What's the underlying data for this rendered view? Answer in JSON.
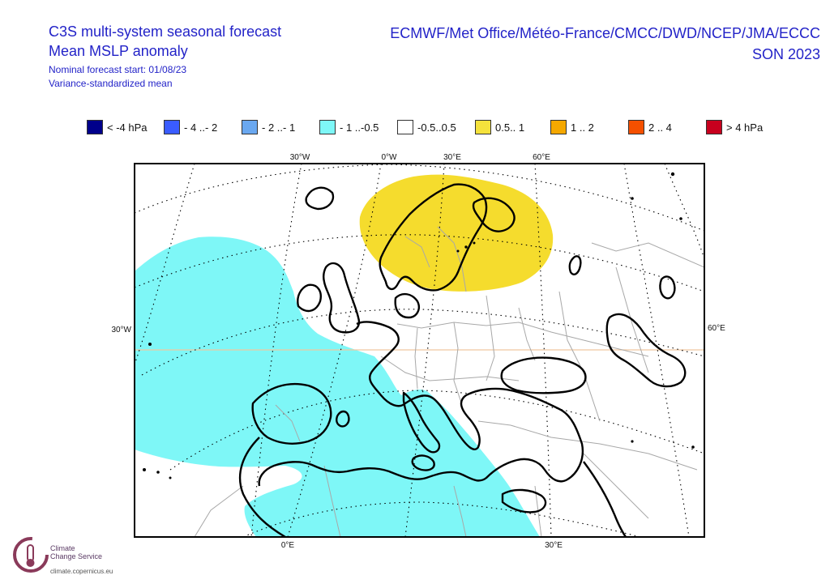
{
  "header": {
    "title": "C3S multi-system seasonal forecast",
    "subtitle": "Mean MSLP anomaly",
    "forecast_start": "Nominal forecast start: 01/08/23",
    "method": "Variance-standardized mean",
    "centres": "ECMWF/Met Office/Météo-France/CMCC/DWD/NCEP/JMA/ECCC",
    "season": "SON 2023"
  },
  "legend": [
    {
      "label": "< -4 hPa",
      "color": "#00008b"
    },
    {
      "label": "- 4 ..- 2",
      "color": "#3a5cff"
    },
    {
      "label": "- 2 ..- 1",
      "color": "#6aa8f0"
    },
    {
      "label": "- 1 ..-0.5",
      "color": "#7ef7f7"
    },
    {
      "label": "-0.5..0.5",
      "color": "#ffffff"
    },
    {
      "label": "0.5.. 1",
      "color": "#f5e23c"
    },
    {
      "label": "1 .. 2",
      "color": "#f5a800"
    },
    {
      "label": "2 .. 4",
      "color": "#f55000"
    },
    {
      "label": ">  4 hPa",
      "color": "#c8001e"
    }
  ],
  "map": {
    "lon_labels_top": [
      "30°W",
      "0°W",
      "30°E",
      "60°E"
    ],
    "lon_labels_bottom": [
      "0°E",
      "30°E"
    ],
    "lat_label_left": "30°W",
    "lat_label_right": "60°E",
    "colors": {
      "negative_anomaly": "#7ef7f7",
      "positive_anomaly": "#f5dc2d",
      "coastline": "#000000",
      "borders": "#a8a8a8",
      "graticule": "#000000",
      "equator_line": "#f0c8a0"
    }
  },
  "logo": {
    "name_line1": "Climate",
    "name_line2": "Change Service",
    "url": "climate.copernicus.eu"
  }
}
